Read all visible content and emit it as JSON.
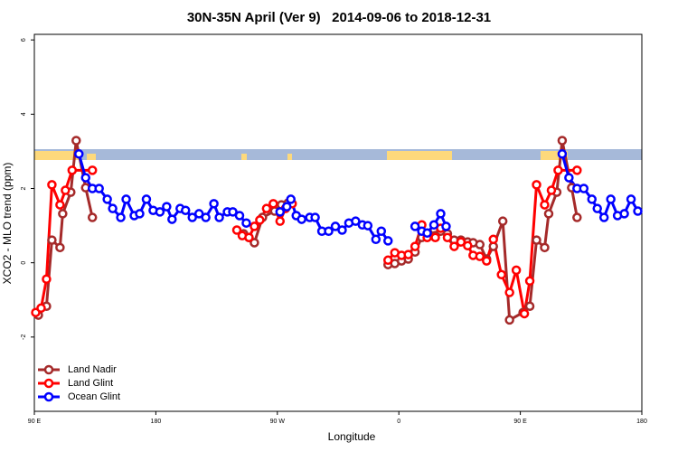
{
  "chart_data": {
    "type": "line",
    "title": "30N-35N April (Ver 9)   2014-09-06 to 2018-12-31",
    "x_label": "Longitude",
    "y_label": "XCO2 - MLO trend (ppm)",
    "xlim": [
      90,
      540
    ],
    "xticks": [
      {
        "value": 90,
        "label": "90 E"
      },
      180,
      {
        "value": 270,
        "label": "90 W"
      },
      {
        "value": 360,
        "label": "0"
      },
      {
        "value": 450,
        "label": "90 E"
      },
      180
    ],
    "ylim": [
      -4,
      6.15
    ],
    "yticks": [
      -2,
      0,
      2,
      4,
      6
    ],
    "legend": "bottom left",
    "series": [
      {
        "name": "Land Nadir",
        "color": "#a52a2a",
        "x": [
          93,
          99,
          103,
          109,
          111,
          117,
          121,
          128,
          133,
          null,
          245,
          249,
          253,
          259,
          268,
          273,
          278,
          null,
          352,
          357,
          362,
          367,
          372,
          377,
          382,
          387,
          391,
          396,
          401,
          406,
          411,
          415,
          420,
          425,
          430,
          437,
          442,
          452,
          457,
          462,
          468,
          471,
          477,
          481,
          488,
          492
        ],
        "values": [
          -1.41,
          -1.17,
          0.61,
          0.41,
          1.32,
          1.9,
          3.29,
          2.02,
          1.22,
          null,
          0.78,
          0.68,
          0.54,
          1.22,
          1.39,
          1.56,
          1.61,
          null,
          -0.05,
          -0.02,
          0.05,
          0.1,
          0.29,
          0.68,
          0.78,
          0.73,
          0.85,
          0.78,
          0.61,
          0.61,
          0.56,
          0.54,
          0.49,
          0.1,
          0.44,
          1.12,
          -1.54,
          -1.34,
          -1.17,
          0.61,
          0.41,
          1.32,
          1.9,
          3.29,
          2.02,
          1.22
        ]
      },
      {
        "name": "Land Glint",
        "color": "#ff0000",
        "x": [
          91,
          95,
          99,
          103,
          109,
          113,
          118,
          133,
          null,
          240,
          244,
          249,
          253,
          257,
          262,
          267,
          272,
          276,
          281,
          null,
          352,
          357,
          362,
          367,
          372,
          377,
          381,
          387,
          391,
          396,
          401,
          406,
          411,
          415,
          420,
          425,
          430,
          436,
          442,
          447,
          453,
          457,
          462,
          468,
          473,
          478,
          492
        ],
        "values": [
          -1.34,
          -1.22,
          -0.44,
          2.1,
          1.56,
          1.95,
          2.49,
          2.49,
          null,
          0.88,
          0.73,
          0.68,
          0.98,
          1.15,
          1.46,
          1.59,
          1.12,
          1.46,
          1.59,
          null,
          0.07,
          0.27,
          0.2,
          0.22,
          0.44,
          1.02,
          0.68,
          0.68,
          0.93,
          0.68,
          0.44,
          0.56,
          0.46,
          0.2,
          0.17,
          0.05,
          0.63,
          -0.32,
          -0.8,
          -0.2,
          -1.37,
          -0.49,
          2.1,
          1.56,
          1.95,
          2.49,
          2.49
        ]
      },
      {
        "name": "Ocean Glint",
        "color": "#0000ff",
        "x": [
          123,
          128,
          133,
          138,
          144,
          148,
          154,
          158,
          164,
          168,
          173,
          178,
          183,
          188,
          192,
          198,
          202,
          207,
          212,
          217,
          223,
          227,
          233,
          237,
          242,
          247,
          null,
          272,
          277,
          280,
          284,
          288,
          294,
          298,
          303,
          308,
          313,
          318,
          323,
          328,
          333,
          337,
          343,
          347,
          352,
          null,
          372,
          377,
          381,
          386,
          391,
          395,
          null,
          481,
          486,
          492,
          497,
          503,
          507,
          512,
          517,
          522,
          527,
          532,
          537
        ],
        "values": [
          2.93,
          2.29,
          2.0,
          2.0,
          1.71,
          1.46,
          1.22,
          1.71,
          1.27,
          1.32,
          1.71,
          1.41,
          1.37,
          1.51,
          1.17,
          1.46,
          1.41,
          1.22,
          1.32,
          1.22,
          1.59,
          1.22,
          1.37,
          1.37,
          1.27,
          1.07,
          null,
          1.37,
          1.51,
          1.71,
          1.27,
          1.17,
          1.22,
          1.22,
          0.85,
          0.85,
          0.98,
          0.88,
          1.07,
          1.12,
          1.02,
          1.0,
          0.63,
          0.85,
          0.59,
          null,
          0.98,
          0.85,
          0.8,
          1.02,
          1.32,
          0.98,
          null,
          2.93,
          2.29,
          2.0,
          2.0,
          1.71,
          1.46,
          1.22,
          1.71,
          1.27,
          1.32,
          1.71,
          1.39
        ]
      }
    ]
  }
}
